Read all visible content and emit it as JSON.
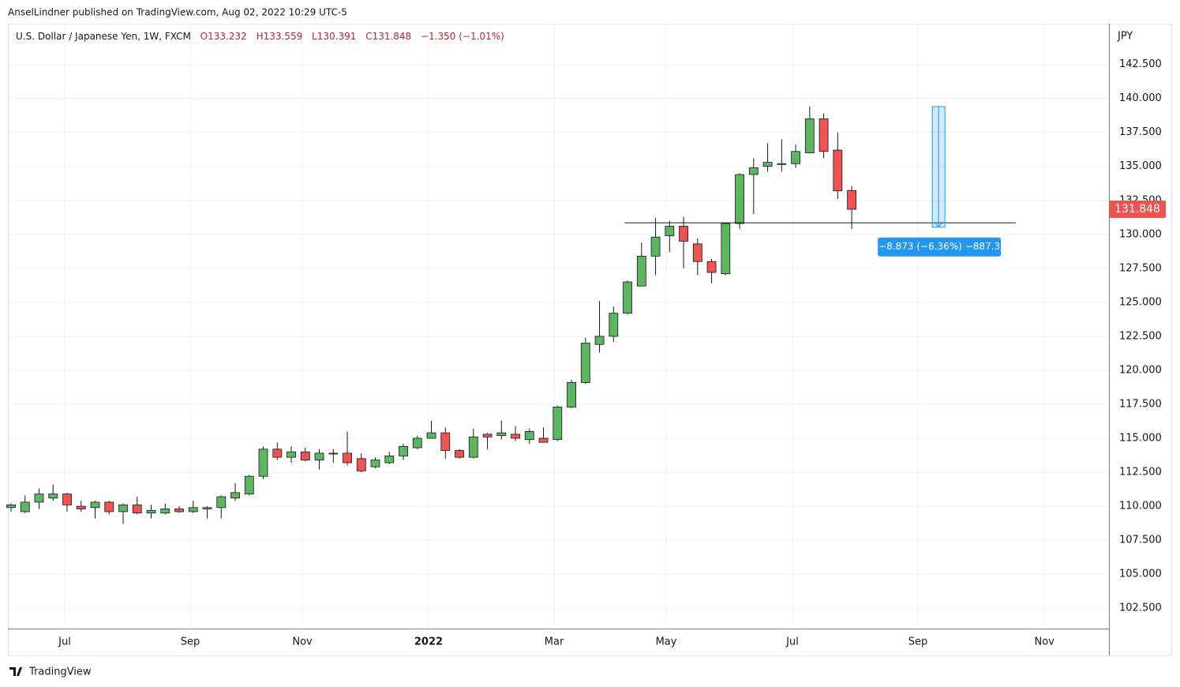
{
  "header": "AnselLindner published on TradingView.com, Aug 02, 2022 10:29 UTC-5",
  "footer": "TradingView",
  "chart_data": {
    "type": "candlestick",
    "title": "U.S. Dollar / Japanese Yen, 1W, FXCM",
    "ohlc_labels": {
      "open": "O133.232",
      "high": "H133.559",
      "low": "L130.391",
      "close": "C131.848",
      "change": "−1.350 (−1.01%)"
    },
    "y_axis_label": "JPY",
    "up_color": "#5cb660",
    "down_color": "#ef5350",
    "x": [
      0,
      1,
      2,
      3,
      4,
      5,
      6,
      7,
      8,
      9,
      10,
      11,
      12,
      13,
      14,
      15,
      16,
      17,
      18,
      19,
      20,
      21,
      22,
      23,
      24,
      25,
      26,
      27,
      28,
      29,
      30,
      31,
      32,
      33,
      34,
      35,
      36,
      37,
      38,
      39,
      40,
      41,
      42,
      43,
      44,
      45,
      46,
      47,
      48,
      49,
      50,
      51,
      52,
      53,
      54,
      55,
      56,
      57,
      58,
      59,
      60
    ],
    "open": [
      109.9,
      109.6,
      110.3,
      110.6,
      110.9,
      110.0,
      109.9,
      110.3,
      109.6,
      110.1,
      109.5,
      109.5,
      109.8,
      109.6,
      109.8,
      109.9,
      110.6,
      110.9,
      112.2,
      114.2,
      113.6,
      114.0,
      113.4,
      113.9,
      113.9,
      113.5,
      112.9,
      113.2,
      113.7,
      114.3,
      115.0,
      115.4,
      114.1,
      113.6,
      115.3,
      115.2,
      115.3,
      114.9,
      115.0,
      114.9,
      117.3,
      119.1,
      121.9,
      122.5,
      124.2,
      126.2,
      128.4,
      129.9,
      130.6,
      129.3,
      128.0,
      127.1,
      130.8,
      134.4,
      135.0,
      135.2,
      135.2,
      136.0,
      138.5,
      136.2,
      133.232
    ],
    "high": [
      110.2,
      110.8,
      111.3,
      111.6,
      111.0,
      110.4,
      110.4,
      110.4,
      110.2,
      110.7,
      110.1,
      110.2,
      110.0,
      110.4,
      110.0,
      110.8,
      111.7,
      112.3,
      114.4,
      114.7,
      114.4,
      114.3,
      114.2,
      114.2,
      115.5,
      113.9,
      113.6,
      114.0,
      114.6,
      115.2,
      116.3,
      115.8,
      114.2,
      115.7,
      115.4,
      116.3,
      115.9,
      115.7,
      115.8,
      117.4,
      119.3,
      122.4,
      125.1,
      124.7,
      126.6,
      129.4,
      131.2,
      131.0,
      131.3,
      129.7,
      128.2,
      130.8,
      134.5,
      135.6,
      136.7,
      137.0,
      136.6,
      139.4,
      138.9,
      137.5,
      133.559
    ],
    "low": [
      109.6,
      109.5,
      109.8,
      110.4,
      109.6,
      109.6,
      109.1,
      109.4,
      108.7,
      109.4,
      109.1,
      109.4,
      109.5,
      109.5,
      109.1,
      109.1,
      110.4,
      110.8,
      112.0,
      113.4,
      113.2,
      113.3,
      112.7,
      113.2,
      113.0,
      112.5,
      112.8,
      113.1,
      113.4,
      114.2,
      115.0,
      113.5,
      113.5,
      113.5,
      114.2,
      114.9,
      114.8,
      114.6,
      114.7,
      114.8,
      117.2,
      119.0,
      121.3,
      122.1,
      124.1,
      126.2,
      127.0,
      128.7,
      127.5,
      127.0,
      126.4,
      127.0,
      130.4,
      131.5,
      134.6,
      134.6,
      134.9,
      136.0,
      135.6,
      132.6,
      130.391
    ],
    "close": [
      110.1,
      110.3,
      110.9,
      110.9,
      110.1,
      109.8,
      110.3,
      109.6,
      110.1,
      109.5,
      109.7,
      109.8,
      109.6,
      109.9,
      109.9,
      110.7,
      111.0,
      112.2,
      114.2,
      113.6,
      114.0,
      113.4,
      113.9,
      113.9,
      113.2,
      112.6,
      113.4,
      113.7,
      114.4,
      115.0,
      115.4,
      114.1,
      113.6,
      115.1,
      115.1,
      115.4,
      115.0,
      115.5,
      114.7,
      117.3,
      119.1,
      122.0,
      122.5,
      124.2,
      126.5,
      128.4,
      129.8,
      130.6,
      129.5,
      128.0,
      127.2,
      130.8,
      134.4,
      134.9,
      135.3,
      135.2,
      136.1,
      138.5,
      136.1,
      133.2,
      131.848
    ],
    "last_price_label": "131.848",
    "xlim": [
      -0.225,
      78.36
    ],
    "xticks": [
      {
        "value": 3.83,
        "label": "Jul"
      },
      {
        "value": 12.79,
        "label": "Sep"
      },
      {
        "value": 20.79,
        "label": "Nov"
      },
      {
        "value": 29.8,
        "label": "2022"
      },
      {
        "value": 38.76,
        "label": "Mar"
      },
      {
        "value": 46.76,
        "label": "May"
      },
      {
        "value": 55.77,
        "label": "Jul"
      },
      {
        "value": 64.73,
        "label": "Sep"
      },
      {
        "value": 73.75,
        "label": "Nov"
      }
    ],
    "ylim": [
      101.0,
      145.5
    ],
    "yticks": [
      {
        "value": 102.5,
        "label": "102.500"
      },
      {
        "value": 105,
        "label": "105.000"
      },
      {
        "value": 107.5,
        "label": "107.500"
      },
      {
        "value": 110,
        "label": "110.000"
      },
      {
        "value": 112.5,
        "label": "112.500"
      },
      {
        "value": 115,
        "label": "115.000"
      },
      {
        "value": 117.5,
        "label": "117.500"
      },
      {
        "value": 120,
        "label": "120.000"
      },
      {
        "value": 122.5,
        "label": "122.500"
      },
      {
        "value": 125,
        "label": "125.000"
      },
      {
        "value": 127.5,
        "label": "127.500"
      },
      {
        "value": 130,
        "label": "130.000"
      },
      {
        "value": 132.5,
        "label": "132.500"
      },
      {
        "value": 135,
        "label": "135.000"
      },
      {
        "value": 137.5,
        "label": "137.500"
      },
      {
        "value": 140,
        "label": "140.000"
      },
      {
        "value": 142.5,
        "label": "142.500"
      }
    ],
    "grid": true,
    "hline": {
      "value": 130.85,
      "x": [
        43.8,
        71.7
      ]
    },
    "measure": {
      "x": 66.2,
      "from": 139.4,
      "to": 130.527,
      "label": "−8.873 (−6.36%) −887.3",
      "color": "#2196f3"
    }
  }
}
